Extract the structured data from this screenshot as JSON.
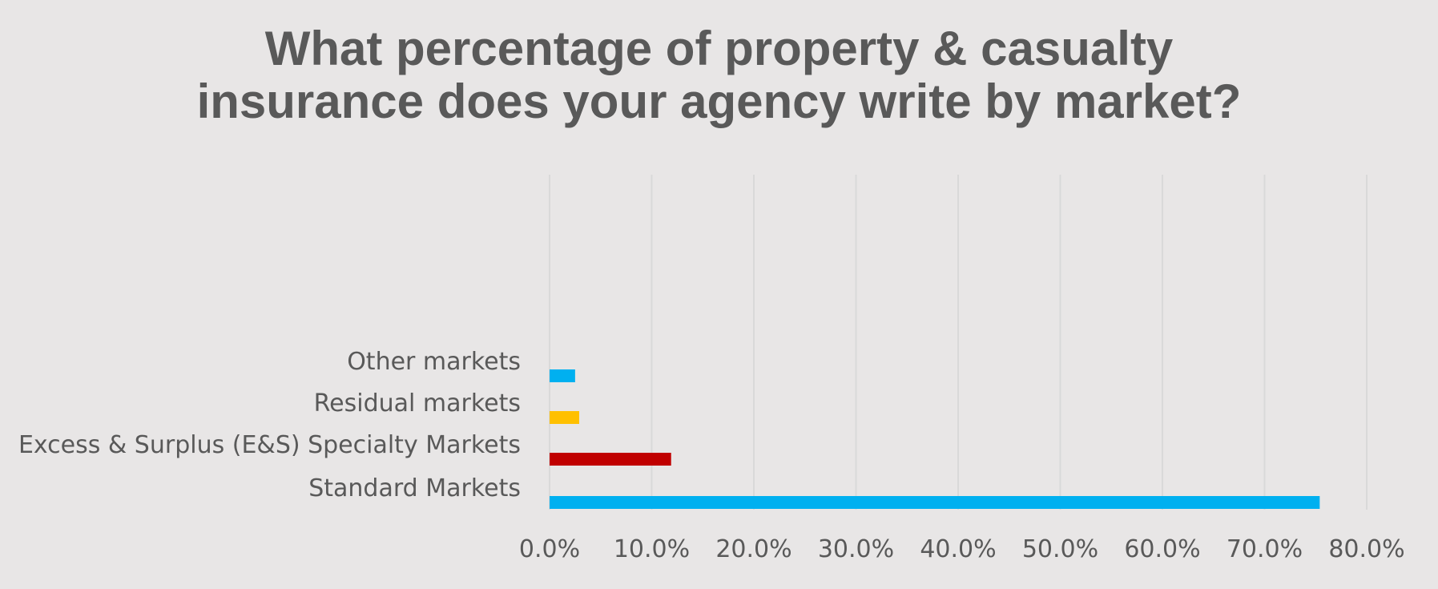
{
  "chart_data": {
    "type": "bar",
    "orientation": "horizontal",
    "title_lines": [
      "What percentage of property & casualty",
      "insurance does your agency write by market?"
    ],
    "categories": [
      "Standard Markets",
      "Excess & Surplus (E&S) Specialty Markets",
      "Residual markets",
      "Other markets"
    ],
    "values": [
      75.4,
      11.9,
      2.9,
      2.5
    ],
    "colors": [
      "#00b0f0",
      "#c00000",
      "#ffc000",
      "#00b0f0"
    ],
    "xlim": [
      0,
      80
    ],
    "xticks": [
      "0.0%",
      "10.0%",
      "20.0%",
      "30.0%",
      "40.0%",
      "50.0%",
      "60.0%",
      "70.0%",
      "80.0%"
    ],
    "grid": true,
    "legend": "none",
    "background": "#e8e6e6",
    "gridline_color": "#d9d9d9",
    "text_color": "#595959"
  }
}
